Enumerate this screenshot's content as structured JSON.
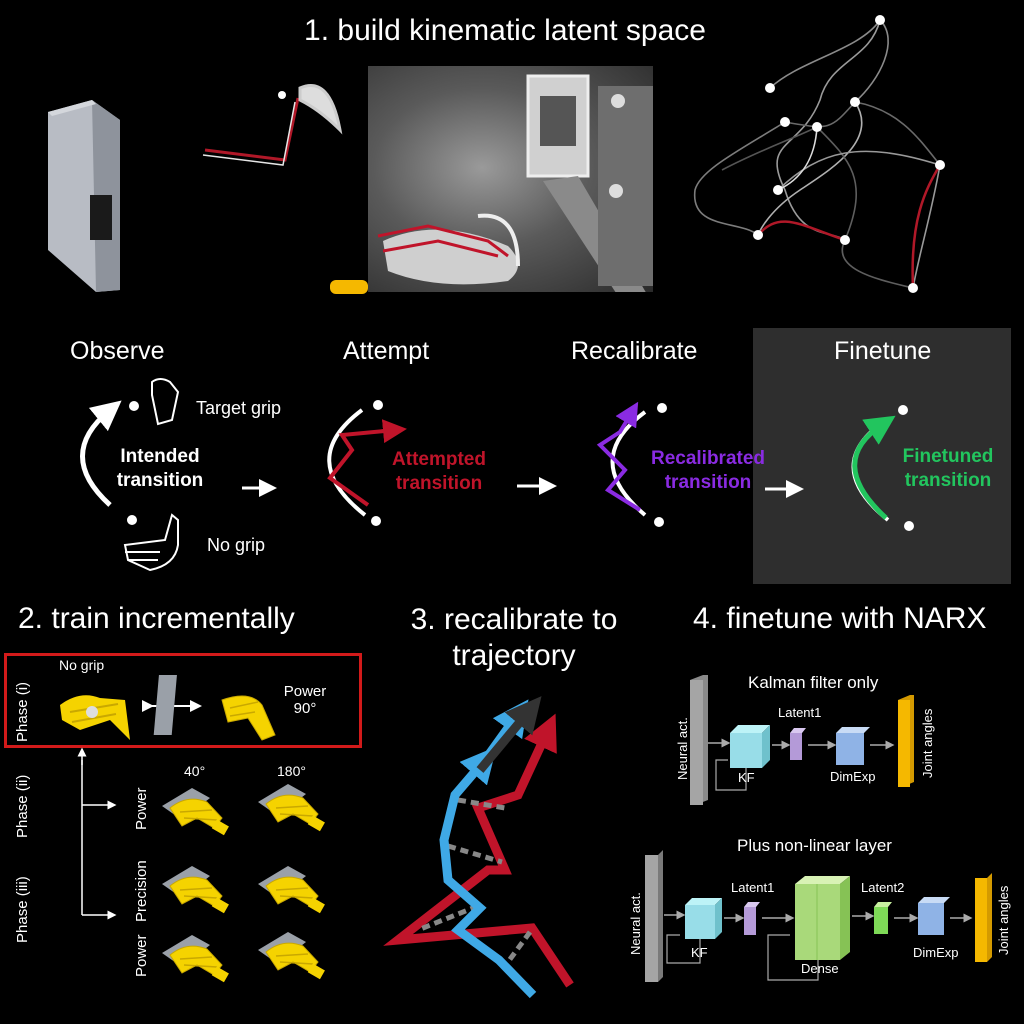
{
  "section1": {
    "title": "1. build kinematic latent space"
  },
  "stages": {
    "observe": "Observe",
    "attempt": "Attempt",
    "recalibrate": "Recalibrate",
    "finetune": "Finetune"
  },
  "observe": {
    "target_grip": "Target grip",
    "no_grip": "No grip",
    "transition_line1": "Intended",
    "transition_line2": "transition"
  },
  "attempt": {
    "line1": "Attempted",
    "line2": "transition"
  },
  "recalibrated": {
    "line1": "Recalibrated",
    "line2": "transition"
  },
  "finetuned": {
    "line1": "Finetuned",
    "line2": "transition"
  },
  "section2": {
    "title": "2. train incrementally",
    "phase1": "Phase (i)",
    "phase2": "Phase (ii)",
    "phase3": "Phase (iii)",
    "no_grip": "No grip",
    "power_line1": "Power",
    "power_line2": "90°",
    "angle_40": "40°",
    "angle_180": "180°",
    "row_power": "Power",
    "row_precision": "Precision",
    "row_power2": "Power"
  },
  "section3": {
    "title_line1": "3. recalibrate to",
    "title_line2": "trajectory"
  },
  "section4": {
    "title": "4. finetune with NARX",
    "top_title": "Kalman filter only",
    "bottom_title": "Plus non-linear layer",
    "neural_act": "Neural act.",
    "kf": "KF",
    "latent1": "Latent1",
    "latent2": "Latent2",
    "dimexp": "DimExp",
    "dense": "Dense",
    "joint_angles": "Joint angles"
  },
  "colors": {
    "red": "#c0142a",
    "purple": "#8a2be2",
    "green": "#22c55e",
    "blue": "#3fa9e6",
    "yellow": "#f5d300",
    "dark_gray": "#2e2e2e"
  }
}
